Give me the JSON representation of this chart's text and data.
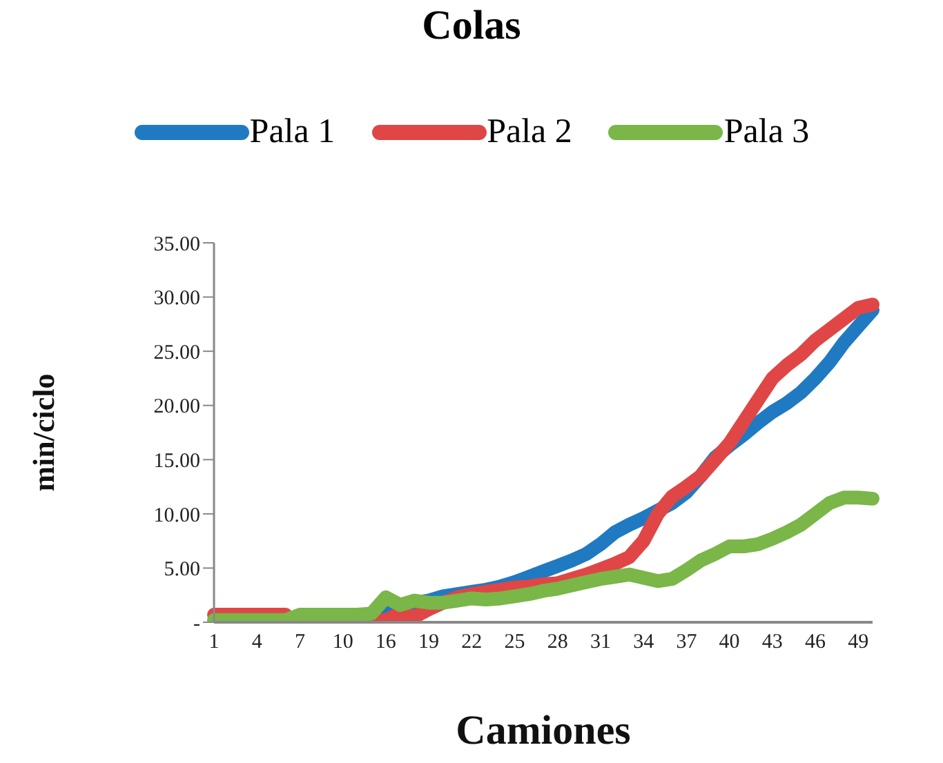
{
  "chart_data": {
    "type": "line",
    "title": "Colas",
    "xlabel": "Camiones",
    "ylabel": "min/ciclo",
    "categories": [
      "1",
      null,
      null,
      "4",
      null,
      null,
      "7",
      null,
      null,
      "10",
      null,
      null,
      "16",
      null,
      null,
      "19",
      null,
      null,
      "22",
      null,
      null,
      "25",
      null,
      null,
      "28",
      null,
      null,
      "31",
      null,
      null,
      "34",
      null,
      null,
      "37",
      null,
      null,
      "40",
      null,
      null,
      "43",
      null,
      null,
      "46",
      null,
      null,
      "49",
      null
    ],
    "series": [
      {
        "name": "Pala 1",
        "color": "#1f7ac2",
        "values": [
          null,
          null,
          null,
          null,
          null,
          null,
          null,
          null,
          null,
          null,
          0.2,
          0.5,
          1.5,
          1.6,
          1.8,
          2.0,
          2.4,
          2.6,
          2.8,
          3.0,
          3.3,
          3.7,
          4.2,
          4.7,
          5.2,
          5.7,
          6.3,
          7.2,
          8.3,
          9.0,
          9.6,
          10.3,
          11.0,
          12.0,
          13.5,
          15.2,
          16.3,
          17.3,
          18.4,
          19.4,
          20.2,
          21.2,
          22.5,
          24.0,
          25.8,
          27.3,
          28.8
        ]
      },
      {
        "name": "Pala 2",
        "color": "#e04646",
        "values": [
          0.7,
          0.7,
          0.7,
          0.7,
          0.7,
          0.7,
          null,
          null,
          null,
          0.3,
          0.3,
          0.1,
          0.2,
          0.8,
          0.5,
          1.2,
          1.8,
          2.3,
          2.6,
          2.8,
          3.0,
          3.2,
          3.3,
          3.5,
          3.6,
          4.0,
          4.4,
          4.9,
          5.4,
          6.0,
          7.5,
          10.0,
          11.6,
          12.5,
          13.5,
          15.0,
          16.5,
          18.5,
          20.5,
          22.5,
          23.7,
          24.7,
          26.0,
          27.0,
          28.0,
          29.0,
          29.3
        ]
      },
      {
        "name": "Pala 3",
        "color": "#7ab648",
        "values": [
          0.2,
          0.2,
          0.2,
          0.2,
          0.2,
          0.2,
          0.7,
          0.7,
          0.7,
          0.7,
          0.7,
          0.8,
          2.3,
          1.6,
          2.0,
          1.8,
          1.8,
          2.0,
          2.2,
          2.1,
          2.2,
          2.4,
          2.6,
          2.9,
          3.1,
          3.4,
          3.7,
          4.0,
          4.2,
          4.4,
          4.1,
          3.8,
          4.0,
          4.8,
          5.7,
          6.3,
          7.0,
          7.0,
          7.2,
          7.7,
          8.3,
          9.0,
          10.0,
          11.0,
          11.5,
          11.5,
          11.4
        ]
      }
    ],
    "ylim": [
      0,
      35
    ],
    "yticks": [
      {
        "value": 0,
        "label": "-"
      },
      {
        "value": 5,
        "label": "5.00"
      },
      {
        "value": 10,
        "label": "10.00"
      },
      {
        "value": 15,
        "label": "15.00"
      },
      {
        "value": 20,
        "label": "20.00"
      },
      {
        "value": 25,
        "label": "25.00"
      },
      {
        "value": 30,
        "label": "30.00"
      },
      {
        "value": 35,
        "label": "35.00"
      }
    ],
    "grid": false,
    "legend": "top",
    "marker": "none",
    "line_style": "solid"
  }
}
